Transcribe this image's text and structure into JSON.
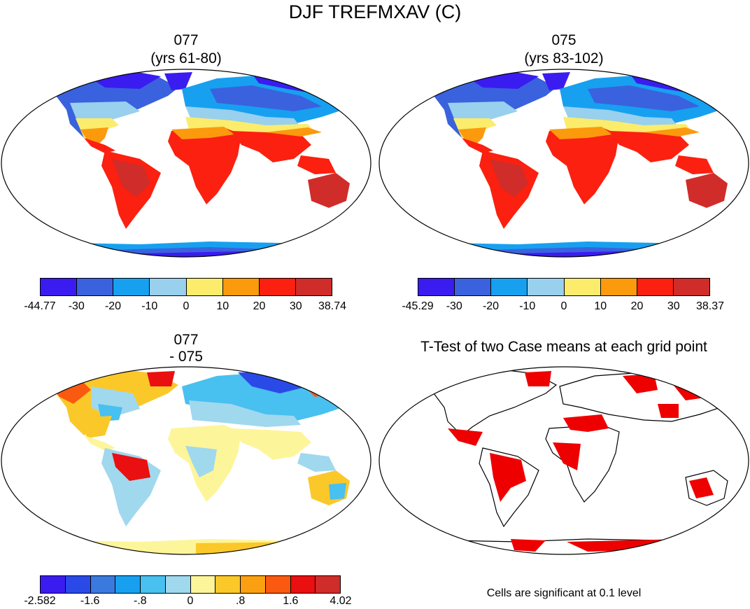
{
  "title": "DJF TREFMXAV (C)",
  "panels": [
    {
      "id": "p077",
      "title_line1": "077",
      "title_line2": "(yrs 61-80)",
      "colorbar": {
        "colors": [
          "#3a1cf0",
          "#3a62de",
          "#17a0f0",
          "#98d0ee",
          "#fbec6c",
          "#fb9a0c",
          "#fb2010",
          "#d02c2a"
        ],
        "labels": [
          "-44.77",
          "-30",
          "-20",
          "-10",
          "0",
          "10",
          "20",
          "30",
          "38.74"
        ]
      }
    },
    {
      "id": "p075",
      "title_line1": "075",
      "title_line2": "(yrs 83-102)",
      "colorbar": {
        "colors": [
          "#3a1cf0",
          "#3a62de",
          "#17a0f0",
          "#98d0ee",
          "#fbec6c",
          "#fb9a0c",
          "#fb2010",
          "#d02c2a"
        ],
        "labels": [
          "-45.29",
          "-30",
          "-20",
          "-10",
          "0",
          "10",
          "20",
          "30",
          "38.37"
        ]
      }
    },
    {
      "id": "pdiff",
      "title_line1": "077",
      "title_line2": "- 075",
      "colorbar": {
        "colors": [
          "#3a1cf0",
          "#2a4ae8",
          "#3a7ade",
          "#18a0f0",
          "#48c0f0",
          "#a0d8ee",
          "#fdf59a",
          "#fbc82a",
          "#fba010",
          "#fa5a10",
          "#ea0f10",
          "#d02c2a"
        ],
        "labels": [
          "-2.582",
          "-1.6",
          "-.8",
          "0",
          ".8",
          "1.6",
          "4.02"
        ]
      }
    },
    {
      "id": "pttest",
      "title_line1": "T-Test of two Case means at each grid point",
      "note": "Cells are significant at 0.1 level",
      "significant_color": "#ee0000"
    }
  ]
}
